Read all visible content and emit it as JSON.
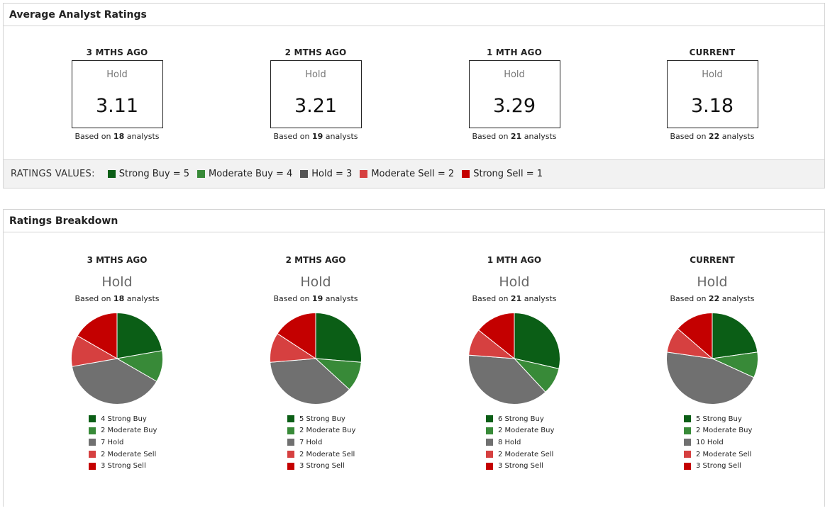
{
  "avg_panel": {
    "title": "Average Analyst Ratings",
    "periods": [
      {
        "label": "3 MTHS AGO",
        "rating": "Hold",
        "value": "3.11",
        "based_prefix": "Based on",
        "count": "18",
        "based_suffix": "analysts"
      },
      {
        "label": "2 MTHS AGO",
        "rating": "Hold",
        "value": "3.21",
        "based_prefix": "Based on",
        "count": "19",
        "based_suffix": "analysts"
      },
      {
        "label": "1 MTH AGO",
        "rating": "Hold",
        "value": "3.29",
        "based_prefix": "Based on",
        "count": "21",
        "based_suffix": "analysts"
      },
      {
        "label": "CURRENT",
        "rating": "Hold",
        "value": "3.18",
        "based_prefix": "Based on",
        "count": "22",
        "based_suffix": "analysts"
      }
    ],
    "values_title": "RATINGS VALUES:",
    "values": [
      {
        "label": "Strong Buy = 5",
        "color": "#0b5e16"
      },
      {
        "label": "Moderate Buy = 4",
        "color": "#388a38"
      },
      {
        "label": "Hold = 3",
        "color": "#555555"
      },
      {
        "label": "Moderate Sell = 2",
        "color": "#d64040"
      },
      {
        "label": "Strong Sell = 1",
        "color": "#c40000"
      }
    ]
  },
  "breakdown_panel": {
    "title": "Ratings Breakdown"
  },
  "chart_data": [
    {
      "type": "pie",
      "title": "3 MTHS AGO",
      "rating": "Hold",
      "based_prefix": "Based on",
      "count": "18",
      "based_suffix": "analysts",
      "categories": [
        "Strong Buy",
        "Moderate Buy",
        "Hold",
        "Moderate Sell",
        "Strong Sell"
      ],
      "values": [
        4,
        2,
        7,
        2,
        3
      ],
      "legend": [
        "4 Strong Buy",
        "2 Moderate Buy",
        "7 Hold",
        "2 Moderate Sell",
        "3 Strong Sell"
      ],
      "colors": [
        "#0b5e16",
        "#388a38",
        "#707070",
        "#d64040",
        "#c40000"
      ]
    },
    {
      "type": "pie",
      "title": "2 MTHS AGO",
      "rating": "Hold",
      "based_prefix": "Based on",
      "count": "19",
      "based_suffix": "analysts",
      "categories": [
        "Strong Buy",
        "Moderate Buy",
        "Hold",
        "Moderate Sell",
        "Strong Sell"
      ],
      "values": [
        5,
        2,
        7,
        2,
        3
      ],
      "legend": [
        "5 Strong Buy",
        "2 Moderate Buy",
        "7 Hold",
        "2 Moderate Sell",
        "3 Strong Sell"
      ],
      "colors": [
        "#0b5e16",
        "#388a38",
        "#707070",
        "#d64040",
        "#c40000"
      ]
    },
    {
      "type": "pie",
      "title": "1 MTH AGO",
      "rating": "Hold",
      "based_prefix": "Based on",
      "count": "21",
      "based_suffix": "analysts",
      "categories": [
        "Strong Buy",
        "Moderate Buy",
        "Hold",
        "Moderate Sell",
        "Strong Sell"
      ],
      "values": [
        6,
        2,
        8,
        2,
        3
      ],
      "legend": [
        "6 Strong Buy",
        "2 Moderate Buy",
        "8 Hold",
        "2 Moderate Sell",
        "3 Strong Sell"
      ],
      "colors": [
        "#0b5e16",
        "#388a38",
        "#707070",
        "#d64040",
        "#c40000"
      ]
    },
    {
      "type": "pie",
      "title": "CURRENT",
      "rating": "Hold",
      "based_prefix": "Based on",
      "count": "22",
      "based_suffix": "analysts",
      "categories": [
        "Strong Buy",
        "Moderate Buy",
        "Hold",
        "Moderate Sell",
        "Strong Sell"
      ],
      "values": [
        5,
        2,
        10,
        2,
        3
      ],
      "legend": [
        "5 Strong Buy",
        "2 Moderate Buy",
        "10 Hold",
        "2 Moderate Sell",
        "3 Strong Sell"
      ],
      "colors": [
        "#0b5e16",
        "#388a38",
        "#707070",
        "#d64040",
        "#c40000"
      ]
    }
  ]
}
